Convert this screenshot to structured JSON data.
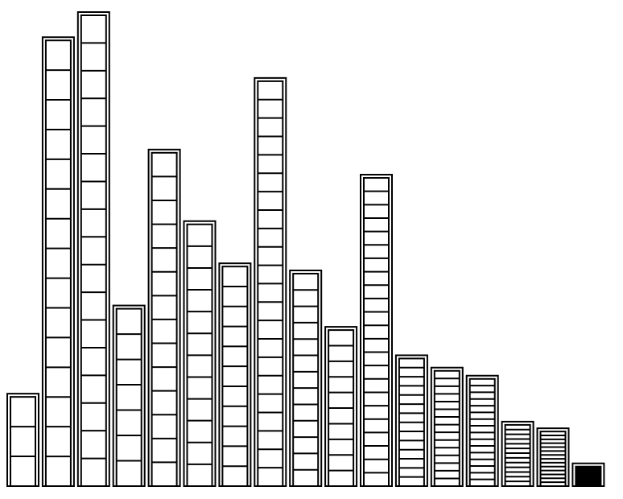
{
  "chart_data": {
    "type": "bar",
    "title": "",
    "xlabel": "",
    "ylabel": "",
    "grid": false,
    "legend": "none",
    "ylim": [
      0,
      100
    ],
    "colors": {
      "background": "#ffffff",
      "stroke": "#000000",
      "bar_fill": "#ffffff"
    },
    "values": [
      19.5,
      94.7,
      100.0,
      38.1,
      71.0,
      55.9,
      47.0,
      86.1,
      45.5,
      33.6,
      65.7,
      27.6,
      25.0,
      23.3,
      13.6,
      12.2,
      4.8
    ],
    "segments": [
      3,
      15,
      17,
      7,
      14,
      12,
      11,
      22,
      13,
      10,
      23,
      14,
      15,
      16,
      13,
      14,
      1
    ]
  }
}
